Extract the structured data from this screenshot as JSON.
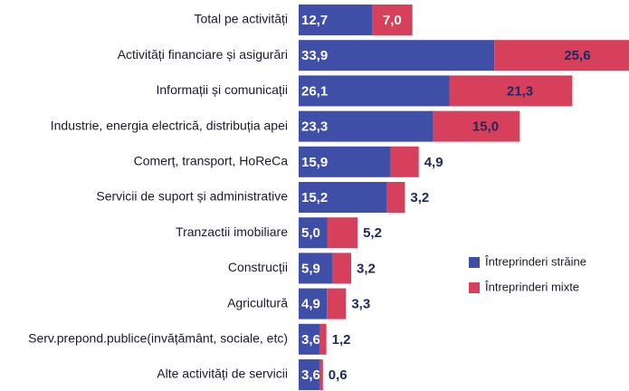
{
  "chart_data": {
    "type": "stacked-bar-horizontal",
    "legend": "right",
    "categories": [
      "Total pe activități",
      "Activități financiare și asigurări",
      "Informații și comunicații",
      "Industrie, energia electrică, distribuția apei",
      "Comerț, transport, HoReCa",
      "Servicii de suport și administrative",
      "Tranzactii imobiliare",
      "Construcții",
      "Agricultură",
      "Serv.prepond.publice(invățământ, sociale, etc)",
      "Alte activități de servicii"
    ],
    "series": [
      {
        "name": "Întreprinderi străine",
        "color": "#3f4ea6",
        "values": [
          12.7,
          33.9,
          26.1,
          23.3,
          15.9,
          15.2,
          5.0,
          5.9,
          4.9,
          3.6,
          3.6
        ],
        "value_labels": [
          "12,7",
          "33,9",
          "26,1",
          "23,3",
          "15,9",
          "15,2",
          "5,0",
          "5,9",
          "4,9",
          "3,6",
          "3,6"
        ]
      },
      {
        "name": "Întreprinderi mixte",
        "color": "#d6405a",
        "values": [
          7.0,
          25.6,
          21.3,
          15.0,
          4.9,
          3.2,
          5.2,
          3.2,
          3.3,
          1.2,
          0.6
        ],
        "value_labels": [
          "7,0",
          "25,6",
          "21,3",
          "15,0",
          "4,9",
          "3,2",
          "5,2",
          "3,2",
          "3,3",
          "1,2",
          "0,6"
        ]
      }
    ]
  }
}
